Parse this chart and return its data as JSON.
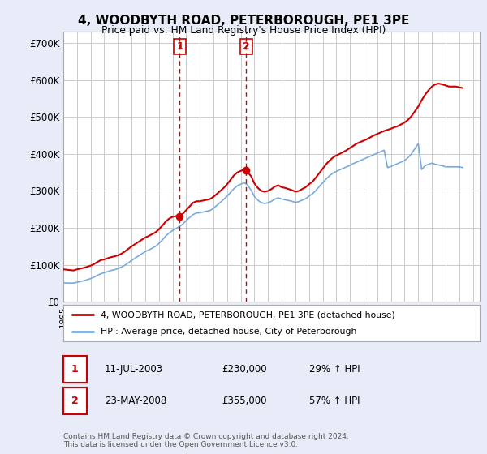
{
  "title": "4, WOODBYTH ROAD, PETERBOROUGH, PE1 3PE",
  "subtitle": "Price paid vs. HM Land Registry's House Price Index (HPI)",
  "ylabel_ticks": [
    0,
    100000,
    200000,
    300000,
    400000,
    500000,
    600000,
    700000
  ],
  "ylim": [
    0,
    730000
  ],
  "xlim_start": 1995.0,
  "xlim_end": 2025.5,
  "sale1_date": 2003.53,
  "sale1_price": 230000,
  "sale1_label": "1",
  "sale2_date": 2008.39,
  "sale2_price": 355000,
  "sale2_label": "2",
  "red_line_color": "#cc0000",
  "blue_line_color": "#7aaadd",
  "sale_marker_color": "#cc0000",
  "vline_color": "#cc0000",
  "background_color": "#e8ecf8",
  "plot_bg_color": "#ffffff",
  "grid_color": "#cccccc",
  "legend_line1": "4, WOODBYTH ROAD, PETERBOROUGH, PE1 3PE (detached house)",
  "legend_line2": "HPI: Average price, detached house, City of Peterborough",
  "table_row1": [
    "1",
    "11-JUL-2003",
    "£230,000",
    "29% ↑ HPI"
  ],
  "table_row2": [
    "2",
    "23-MAY-2008",
    "£355,000",
    "57% ↑ HPI"
  ],
  "footer": "Contains HM Land Registry data © Crown copyright and database right 2024.\nThis data is licensed under the Open Government Licence v3.0.",
  "red_hpi_years": [
    1995.0,
    1995.25,
    1995.5,
    1995.75,
    1996.0,
    1996.25,
    1996.5,
    1996.75,
    1997.0,
    1997.25,
    1997.5,
    1997.75,
    1998.0,
    1998.25,
    1998.5,
    1998.75,
    1999.0,
    1999.25,
    1999.5,
    1999.75,
    2000.0,
    2000.25,
    2000.5,
    2000.75,
    2001.0,
    2001.25,
    2001.5,
    2001.75,
    2002.0,
    2002.25,
    2002.5,
    2002.75,
    2003.0,
    2003.25,
    2003.53,
    2003.75,
    2004.0,
    2004.25,
    2004.5,
    2004.75,
    2005.0,
    2005.25,
    2005.5,
    2005.75,
    2006.0,
    2006.25,
    2006.5,
    2006.75,
    2007.0,
    2007.25,
    2007.5,
    2007.75,
    2008.0,
    2008.25,
    2008.39,
    2008.75,
    2009.0,
    2009.25,
    2009.5,
    2009.75,
    2010.0,
    2010.25,
    2010.5,
    2010.75,
    2011.0,
    2011.25,
    2011.5,
    2011.75,
    2012.0,
    2012.25,
    2012.5,
    2012.75,
    2013.0,
    2013.25,
    2013.5,
    2013.75,
    2014.0,
    2014.25,
    2014.5,
    2014.75,
    2015.0,
    2015.25,
    2015.5,
    2015.75,
    2016.0,
    2016.25,
    2016.5,
    2016.75,
    2017.0,
    2017.25,
    2017.5,
    2017.75,
    2018.0,
    2018.25,
    2018.5,
    2018.75,
    2019.0,
    2019.25,
    2019.5,
    2019.75,
    2020.0,
    2020.25,
    2020.5,
    2020.75,
    2021.0,
    2021.25,
    2021.5,
    2021.75,
    2022.0,
    2022.25,
    2022.5,
    2022.75,
    2023.0,
    2023.25,
    2023.5,
    2023.75,
    2024.0,
    2024.25
  ],
  "red_hpi_values": [
    88000,
    87000,
    86000,
    85000,
    88000,
    90000,
    92000,
    95000,
    98000,
    102000,
    108000,
    113000,
    115000,
    118000,
    121000,
    123000,
    126000,
    130000,
    136000,
    143000,
    150000,
    156000,
    162000,
    168000,
    174000,
    178000,
    183000,
    188000,
    196000,
    206000,
    217000,
    225000,
    230000,
    232000,
    230000,
    238000,
    248000,
    258000,
    268000,
    272000,
    272000,
    274000,
    276000,
    278000,
    284000,
    292000,
    300000,
    308000,
    318000,
    330000,
    342000,
    350000,
    354000,
    358000,
    355000,
    340000,
    320000,
    308000,
    300000,
    298000,
    300000,
    305000,
    312000,
    315000,
    310000,
    308000,
    305000,
    302000,
    298000,
    300000,
    305000,
    310000,
    318000,
    325000,
    336000,
    348000,
    360000,
    372000,
    382000,
    390000,
    396000,
    400000,
    405000,
    410000,
    416000,
    422000,
    428000,
    432000,
    436000,
    440000,
    445000,
    450000,
    454000,
    458000,
    462000,
    465000,
    468000,
    472000,
    475000,
    480000,
    485000,
    492000,
    502000,
    515000,
    528000,
    545000,
    560000,
    572000,
    582000,
    588000,
    590000,
    588000,
    585000,
    582000,
    582000,
    582000,
    580000,
    578000
  ],
  "blue_hpi_years": [
    1995.0,
    1995.25,
    1995.5,
    1995.75,
    1996.0,
    1996.25,
    1996.5,
    1996.75,
    1997.0,
    1997.25,
    1997.5,
    1997.75,
    1998.0,
    1998.25,
    1998.5,
    1998.75,
    1999.0,
    1999.25,
    1999.5,
    1999.75,
    2000.0,
    2000.25,
    2000.5,
    2000.75,
    2001.0,
    2001.25,
    2001.5,
    2001.75,
    2002.0,
    2002.25,
    2002.5,
    2002.75,
    2003.0,
    2003.25,
    2003.5,
    2003.75,
    2004.0,
    2004.25,
    2004.5,
    2004.75,
    2005.0,
    2005.25,
    2005.5,
    2005.75,
    2006.0,
    2006.25,
    2006.5,
    2006.75,
    2007.0,
    2007.25,
    2007.5,
    2007.75,
    2008.0,
    2008.25,
    2008.5,
    2008.75,
    2009.0,
    2009.25,
    2009.5,
    2009.75,
    2010.0,
    2010.25,
    2010.5,
    2010.75,
    2011.0,
    2011.25,
    2011.5,
    2011.75,
    2012.0,
    2012.25,
    2012.5,
    2012.75,
    2013.0,
    2013.25,
    2013.5,
    2013.75,
    2014.0,
    2014.25,
    2014.5,
    2014.75,
    2015.0,
    2015.25,
    2015.5,
    2015.75,
    2016.0,
    2016.25,
    2016.5,
    2016.75,
    2017.0,
    2017.25,
    2017.5,
    2017.75,
    2018.0,
    2018.25,
    2018.5,
    2018.75,
    2019.0,
    2019.25,
    2019.5,
    2019.75,
    2020.0,
    2020.25,
    2020.5,
    2020.75,
    2021.0,
    2021.25,
    2021.5,
    2021.75,
    2022.0,
    2022.25,
    2022.5,
    2022.75,
    2023.0,
    2023.25,
    2023.5,
    2023.75,
    2024.0,
    2024.25
  ],
  "blue_hpi_values": [
    52000,
    51000,
    51000,
    51000,
    53000,
    55000,
    57000,
    60000,
    63000,
    67000,
    72000,
    76000,
    79000,
    82000,
    85000,
    87000,
    90000,
    94000,
    99000,
    105000,
    112000,
    118000,
    124000,
    130000,
    136000,
    140000,
    145000,
    150000,
    158000,
    167000,
    178000,
    186000,
    193000,
    198000,
    204000,
    210000,
    220000,
    228000,
    236000,
    240000,
    241000,
    243000,
    245000,
    247000,
    253000,
    261000,
    269000,
    277000,
    286000,
    296000,
    306000,
    314000,
    318000,
    322000,
    316000,
    302000,
    285000,
    275000,
    268000,
    266000,
    268000,
    272000,
    278000,
    281000,
    278000,
    276000,
    274000,
    272000,
    269000,
    271000,
    275000,
    279000,
    286000,
    292000,
    301000,
    312000,
    322000,
    332000,
    341000,
    348000,
    353000,
    357000,
    361000,
    365000,
    369000,
    374000,
    378000,
    382000,
    386000,
    390000,
    394000,
    398000,
    402000,
    406000,
    410000,
    363000,
    366000,
    370000,
    374000,
    378000,
    382000,
    390000,
    400000,
    414000,
    428000,
    358000,
    368000,
    372000,
    375000,
    372000,
    370000,
    368000,
    365000,
    365000,
    365000,
    365000,
    365000,
    363000
  ]
}
